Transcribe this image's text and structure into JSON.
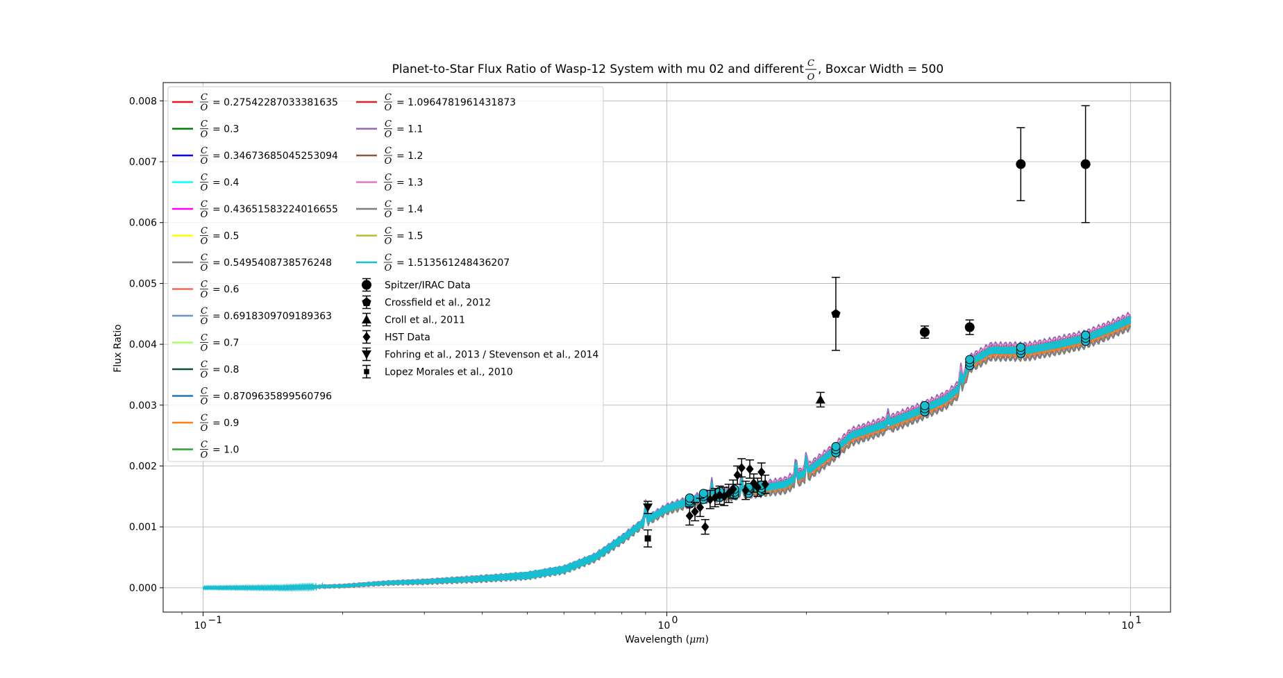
{
  "chart_data": {
    "type": "line",
    "title": {
      "prefix": "Planet-to-Star Flux Ratio of Wasp-12 System with mu 02 and different ",
      "frac_num": "C",
      "frac_den": "O",
      "suffix": ", Boxcar Width = 500"
    },
    "xlabel": {
      "text": "Wavelength (",
      "math": "μm",
      "close": ")"
    },
    "ylabel": "Flux Ratio",
    "x_scale": "log",
    "xlim": [
      0.082,
      12.2
    ],
    "ylim": [
      -0.0004,
      0.0083
    ],
    "grid": true,
    "legend_position": "upper-left",
    "x_ticks": [
      {
        "value": 0.1,
        "base": "10",
        "exp": "−1"
      },
      {
        "value": 1,
        "base": "10",
        "exp": "0"
      },
      {
        "value": 10,
        "base": "10",
        "exp": "1"
      }
    ],
    "y_ticks": [
      {
        "value": 0.0,
        "label": "0.000"
      },
      {
        "value": 0.001,
        "label": "0.001"
      },
      {
        "value": 0.002,
        "label": "0.002"
      },
      {
        "value": 0.003,
        "label": "0.003"
      },
      {
        "value": 0.004,
        "label": "0.004"
      },
      {
        "value": 0.005,
        "label": "0.005"
      },
      {
        "value": 0.006,
        "label": "0.006"
      },
      {
        "value": 0.007,
        "label": "0.007"
      },
      {
        "value": 0.008,
        "label": "0.008"
      }
    ],
    "model_x": [
      0.1,
      0.15,
      0.2,
      0.25,
      0.3,
      0.4,
      0.5,
      0.6,
      0.7,
      0.8,
      0.9,
      1.0,
      1.2,
      1.5,
      1.8,
      2.0,
      2.3,
      2.5,
      3.0,
      3.5,
      4.0,
      4.3,
      4.5,
      5.0,
      6.0,
      7.0,
      8.0,
      9.0,
      10.0
    ],
    "model_base": [
      0.0,
      0.0,
      3e-05,
      8e-05,
      0.0001,
      0.00015,
      0.0002,
      0.0003,
      0.0005,
      0.0008,
      0.0011,
      0.0013,
      0.0015,
      0.0016,
      0.0017,
      0.0019,
      0.00225,
      0.0025,
      0.0027,
      0.0029,
      0.0031,
      0.0033,
      0.0037,
      0.0039,
      0.0039,
      0.004,
      0.0041,
      0.00425,
      0.0044
    ],
    "series": [
      {
        "name": "= 0.27542287033381635",
        "color": "#e41a1c",
        "offset": -4e-05
      },
      {
        "name": "= 0.3",
        "color": "#008000",
        "offset": -3e-05
      },
      {
        "name": "= 0.34673685045253094",
        "color": "#0000ff",
        "offset": -2e-05
      },
      {
        "name": "= 0.4",
        "color": "#00ffff",
        "offset": -1e-05
      },
      {
        "name": "= 0.43651583224016655",
        "color": "#ff00ff",
        "offset": 6e-05
      },
      {
        "name": "= 0.5",
        "color": "#ffff00",
        "offset": 0.0
      },
      {
        "name": "= 0.5495408738576248",
        "color": "#808080",
        "offset": -0.00012
      },
      {
        "name": "= 0.6",
        "color": "#ee6a50",
        "offset": -8e-05
      },
      {
        "name": "= 0.6918309709189363",
        "color": "#6f8fc8",
        "offset": 1e-05
      },
      {
        "name": "= 0.7",
        "color": "#adff63",
        "offset": 2e-05
      },
      {
        "name": "= 0.8",
        "color": "#0b4f3a",
        "offset": 2e-05
      },
      {
        "name": "= 0.8709635899560796",
        "color": "#1f77b4",
        "offset": 3e-05
      },
      {
        "name": "= 0.9",
        "color": "#ff7f0e",
        "offset": -6e-05
      },
      {
        "name": "= 1.0",
        "color": "#2ca02c",
        "offset": 3e-05
      },
      {
        "name": "= 1.0964781961431873",
        "color": "#d62728",
        "offset": 4e-05
      },
      {
        "name": "= 1.1",
        "color": "#9467bd",
        "offset": 0.0001
      },
      {
        "name": "= 1.2",
        "color": "#8c564b",
        "offset": 5e-05
      },
      {
        "name": "= 1.3",
        "color": "#e377c2",
        "offset": 7e-05
      },
      {
        "name": "= 1.4",
        "color": "#7f7f7f",
        "offset": -0.00014
      },
      {
        "name": "= 1.5",
        "color": "#bcbd22",
        "offset": 0.0
      },
      {
        "name": "= 1.513561248436207",
        "color": "#17becf",
        "offset": 2e-05
      }
    ],
    "observations": [
      {
        "name": "Spitzer/IRAC Data",
        "marker": "circle",
        "points": [
          [
            3.6,
            0.0042,
            0.0001
          ],
          [
            4.5,
            0.00428,
            0.00012
          ],
          [
            5.8,
            0.00696,
            0.0006
          ],
          [
            8.0,
            0.00696,
            0.00096
          ]
        ]
      },
      {
        "name": "Crossfield et al., 2012",
        "marker": "pentagon",
        "points": [
          [
            2.315,
            0.0045,
            0.0006
          ]
        ]
      },
      {
        "name": "Croll et al., 2011",
        "marker": "triangle-up",
        "points": [
          [
            2.145,
            0.00309,
            0.00012
          ]
        ]
      },
      {
        "name": "HST Data",
        "marker": "diamond",
        "points": [
          [
            1.12,
            0.00118,
            0.00015
          ],
          [
            1.15,
            0.00125,
            0.00015
          ],
          [
            1.18,
            0.00132,
            0.00015
          ],
          [
            1.21,
            0.001,
            0.00012
          ],
          [
            1.24,
            0.00145,
            0.00015
          ],
          [
            1.27,
            0.00148,
            0.00015
          ],
          [
            1.3,
            0.00152,
            0.00015
          ],
          [
            1.33,
            0.0015,
            0.00015
          ],
          [
            1.36,
            0.00155,
            0.00015
          ],
          [
            1.39,
            0.00162,
            0.00015
          ],
          [
            1.42,
            0.00185,
            0.00015
          ],
          [
            1.45,
            0.00197,
            0.00015
          ],
          [
            1.48,
            0.0016,
            0.00015
          ],
          [
            1.51,
            0.00195,
            0.00015
          ],
          [
            1.54,
            0.00172,
            0.00015
          ],
          [
            1.57,
            0.00165,
            0.00015
          ],
          [
            1.6,
            0.0019,
            0.00015
          ],
          [
            1.63,
            0.0017,
            0.00015
          ]
        ]
      },
      {
        "name": "Fohring et al., 2013 / Stevenson et al., 2014",
        "marker": "triangle-down",
        "points": [
          [
            0.91,
            0.00132,
            0.0001
          ]
        ]
      },
      {
        "name": "Lopez Morales et al., 2010",
        "marker": "square",
        "points": [
          [
            0.91,
            0.00081,
            0.00014
          ]
        ]
      }
    ]
  }
}
